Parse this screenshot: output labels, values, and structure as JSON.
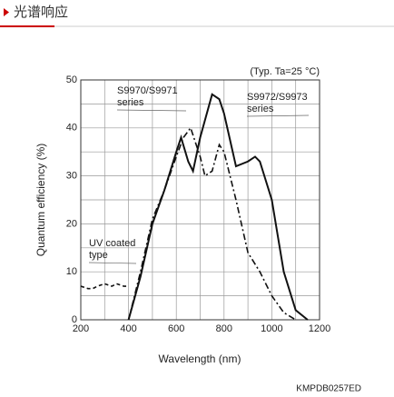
{
  "header": {
    "title": "光谱响应"
  },
  "chart_data": {
    "type": "line",
    "annotation": "(Typ. Ta=25 °C)",
    "xlabel": "Wavelength (nm)",
    "ylabel": "Quantum efficiency (%)",
    "xlim": [
      200,
      1200
    ],
    "ylim": [
      0,
      50
    ],
    "xticks": [
      200,
      400,
      600,
      800,
      1000,
      1200
    ],
    "yticks": [
      0,
      10,
      20,
      30,
      40,
      50
    ],
    "minor_xticks": [
      300,
      500,
      700,
      900,
      1100
    ],
    "minor_yticks": [
      5,
      15,
      25,
      35,
      45
    ],
    "grid": true,
    "series": [
      {
        "label": [
          "S9970/S9971",
          "series"
        ],
        "color": "#111",
        "style": "dash-dot",
        "x": [
          400,
          450,
          500,
          550,
          600,
          630,
          660,
          700,
          720,
          750,
          780,
          800,
          850,
          900,
          950,
          1000,
          1050,
          1100
        ],
        "values": [
          0,
          10,
          21,
          27,
          34,
          38,
          40,
          34,
          30,
          31,
          36.5,
          35,
          25,
          14,
          10,
          5,
          1.5,
          0
        ]
      },
      {
        "label": [
          "S9972/S9973",
          "series"
        ],
        "color": "#111",
        "style": "solid",
        "x": [
          400,
          450,
          500,
          550,
          600,
          620,
          650,
          670,
          700,
          750,
          780,
          800,
          850,
          900,
          930,
          950,
          1000,
          1050,
          1100,
          1150
        ],
        "values": [
          0,
          9,
          20,
          27,
          35,
          38,
          33,
          31,
          38,
          47,
          46,
          43,
          32,
          33,
          34,
          33,
          25,
          10,
          2,
          0
        ]
      },
      {
        "label": [
          "UV coated",
          "type"
        ],
        "color": "#111",
        "style": "dashed",
        "x": [
          200,
          230,
          250,
          270,
          300,
          330,
          350,
          380,
          400
        ],
        "values": [
          7,
          6.5,
          6.5,
          7,
          7.5,
          7,
          7.5,
          7,
          7
        ]
      }
    ]
  },
  "footer": {
    "code": "KMPDB0257ED"
  }
}
